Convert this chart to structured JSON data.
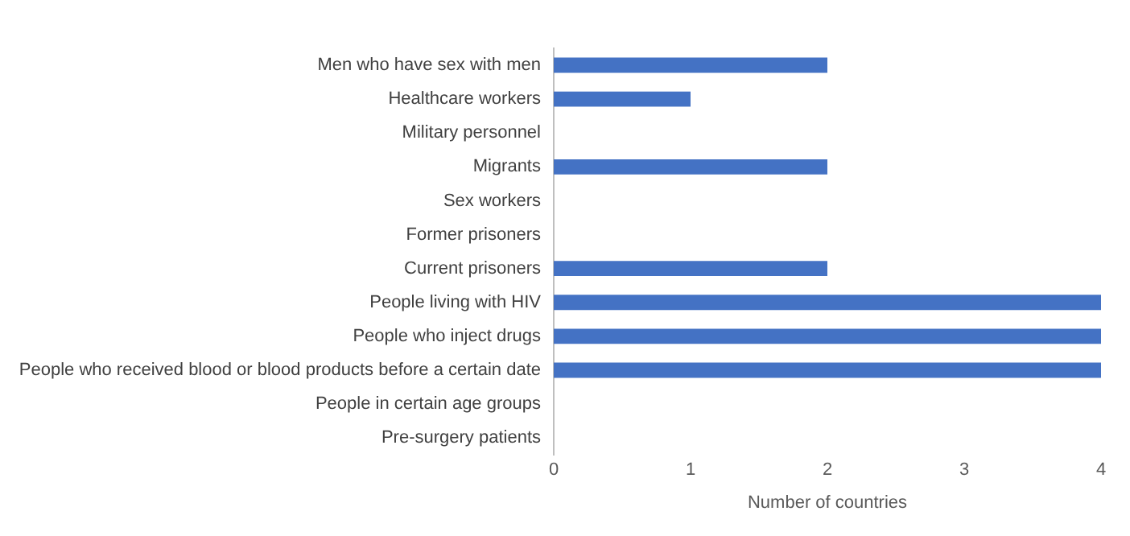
{
  "chart_data": {
    "type": "bar",
    "orientation": "horizontal",
    "xlabel": "Number of countries",
    "categories": [
      "Men who have sex with men",
      "Healthcare workers",
      "Military personnel",
      "Migrants",
      "Sex workers",
      "Former prisoners",
      "Current prisoners",
      "People living with HIV",
      "People who inject drugs",
      "People who received blood or blood products before a certain date",
      "People in certain age groups",
      "Pre-surgery patients"
    ],
    "values": [
      2,
      1,
      0,
      2,
      0,
      0,
      2,
      4,
      4,
      4,
      0,
      0
    ],
    "color": "#4472c4",
    "xlim": [
      0,
      4
    ],
    "xticks": [
      0,
      1,
      2,
      3,
      4
    ],
    "grid": false,
    "legend": false
  }
}
